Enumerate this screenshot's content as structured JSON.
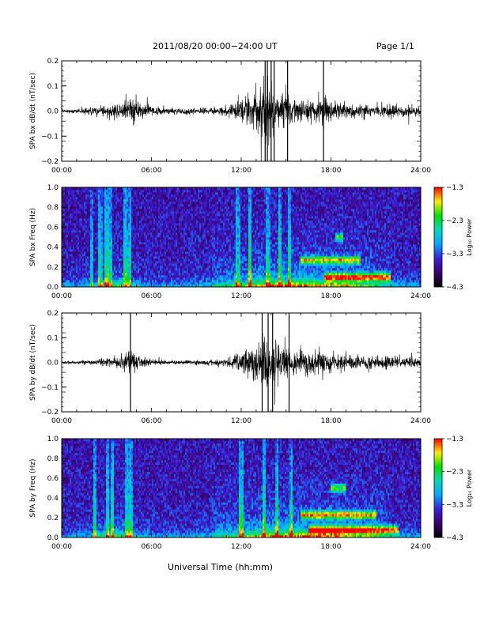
{
  "header": {
    "date_range": "2011/08/20  00:00−24:00 UT",
    "page": "Page 1/1"
  },
  "footer": {
    "xlabel": "Universal Time (hh:mm)"
  },
  "colors": {
    "trace": "#000000",
    "background": "#ffffff",
    "colormap": [
      "#000000",
      "#3a0070",
      "#3b1fd6",
      "#00a8ff",
      "#00d8c0",
      "#00e000",
      "#ffee00",
      "#ff0000"
    ]
  },
  "chart_data": [
    {
      "type": "line",
      "ylabel": "SPA bx dB/dt (nT/sec)",
      "xticks": [
        "00:00",
        "06:00",
        "12:00",
        "18:00",
        "24:00"
      ],
      "xlim": [
        0,
        24
      ],
      "ylim": [
        -0.2,
        0.2
      ],
      "yticks": [
        "−0.2",
        "−0.1",
        "0.0",
        "0.1",
        "0.2"
      ],
      "yticks_values": [
        -0.2,
        -0.1,
        0.0,
        0.1,
        0.2
      ],
      "envelope": {
        "hours": [
          0,
          1,
          2,
          3,
          4,
          4.5,
          5,
          5.5,
          6,
          7,
          8,
          9,
          10,
          11,
          11.5,
          12,
          12.5,
          13,
          13.5,
          14,
          14.5,
          15,
          15.5,
          16,
          17,
          17.5,
          18,
          19,
          20,
          21,
          22,
          23,
          24
        ],
        "amplitude": [
          0.01,
          0.012,
          0.03,
          0.04,
          0.06,
          0.09,
          0.07,
          0.04,
          0.03,
          0.02,
          0.02,
          0.02,
          0.025,
          0.03,
          0.05,
          0.08,
          0.1,
          0.14,
          0.2,
          0.18,
          0.16,
          0.12,
          0.09,
          0.08,
          0.07,
          0.09,
          0.07,
          0.05,
          0.045,
          0.04,
          0.04,
          0.035,
          0.03
        ]
      },
      "spikes_hours": [
        13.6,
        13.75,
        14.0,
        14.2,
        15.1,
        17.5
      ]
    },
    {
      "type": "heatmap",
      "ylabel": "SPA bx Freq (Hz)",
      "xticks": [
        "00:00",
        "06:00",
        "12:00",
        "18:00",
        "24:00"
      ],
      "xlim": [
        0,
        24
      ],
      "ylim": [
        0,
        1.0
      ],
      "yticks": [
        "0.0",
        "0.2",
        "0.4",
        "0.6",
        "0.8",
        "1.0"
      ],
      "yticks_values": [
        0,
        0.2,
        0.4,
        0.6,
        0.8,
        1.0
      ],
      "colorbar": {
        "label": "Log₁₀ Power",
        "ticks": [
          "−1.3",
          "−2.3",
          "−3.3",
          "−4.3"
        ],
        "range": [
          -4.3,
          -1.3
        ]
      },
      "vertical_bands_hours": [
        2.0,
        2.6,
        3.0,
        3.3,
        4.2,
        4.5,
        11.8,
        12.6,
        13.8,
        14.6,
        15.2
      ],
      "features": [
        {
          "hours": [
            16.0,
            20.0
          ],
          "freq": 0.27,
          "strength": 0.55
        },
        {
          "hours": [
            17.5,
            22.0
          ],
          "freq": 0.1,
          "strength": 0.6
        },
        {
          "hours": [
            18.3,
            18.8
          ],
          "freq": 0.5,
          "strength": 0.45
        }
      ]
    },
    {
      "type": "line",
      "ylabel": "SPA by dB/dt (nT/sec)",
      "xticks": [
        "00:00",
        "06:00",
        "12:00",
        "18:00",
        "24:00"
      ],
      "xlim": [
        0,
        24
      ],
      "ylim": [
        -0.2,
        0.2
      ],
      "yticks": [
        "−0.2",
        "−0.1",
        "0.0",
        "0.1",
        "0.2"
      ],
      "yticks_values": [
        -0.2,
        -0.1,
        0.0,
        0.1,
        0.2
      ],
      "envelope": {
        "hours": [
          0,
          1,
          2,
          3,
          4,
          4.5,
          5,
          5.5,
          6,
          7,
          8,
          9,
          10,
          11,
          11.5,
          12,
          12.5,
          13,
          13.5,
          14,
          14.5,
          15,
          15.5,
          16,
          17,
          17.5,
          18,
          19,
          20,
          21,
          22,
          23,
          24
        ],
        "amplitude": [
          0.008,
          0.01,
          0.02,
          0.03,
          0.05,
          0.08,
          0.06,
          0.03,
          0.02,
          0.015,
          0.015,
          0.015,
          0.02,
          0.025,
          0.04,
          0.07,
          0.1,
          0.13,
          0.2,
          0.18,
          0.16,
          0.13,
          0.1,
          0.09,
          0.08,
          0.09,
          0.07,
          0.05,
          0.045,
          0.04,
          0.04,
          0.035,
          0.03
        ]
      },
      "spikes_hours": [
        4.6,
        13.4,
        13.8,
        14.1,
        15.2
      ]
    },
    {
      "type": "heatmap",
      "ylabel": "SPA by Freq (Hz)",
      "xticks": [
        "00:00",
        "06:00",
        "12:00",
        "18:00",
        "24:00"
      ],
      "xlim": [
        0,
        24
      ],
      "ylim": [
        0,
        1.0
      ],
      "yticks": [
        "0.0",
        "0.2",
        "0.4",
        "0.6",
        "0.8",
        "1.0"
      ],
      "yticks_values": [
        0,
        0.2,
        0.4,
        0.6,
        0.8,
        1.0
      ],
      "colorbar": {
        "label": "Log₁₀ Power",
        "ticks": [
          "−1.3",
          "−2.3",
          "−3.3",
          "−4.3"
        ],
        "range": [
          -4.3,
          -1.3
        ]
      },
      "vertical_bands_hours": [
        2.2,
        3.1,
        3.4,
        4.3,
        4.6,
        12.0,
        13.5,
        14.4,
        15.3
      ],
      "features": [
        {
          "hours": [
            16.0,
            21.0
          ],
          "freq": 0.23,
          "strength": 0.6
        },
        {
          "hours": [
            16.5,
            22.5
          ],
          "freq": 0.08,
          "strength": 0.65
        },
        {
          "hours": [
            18.0,
            19.0
          ],
          "freq": 0.5,
          "strength": 0.5
        }
      ]
    }
  ]
}
